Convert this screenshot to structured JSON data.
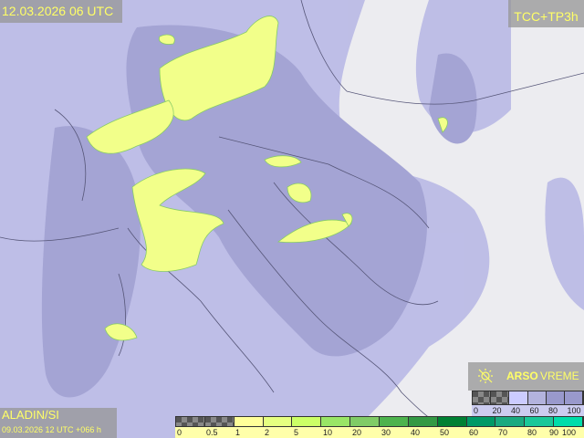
{
  "header": {
    "valid_time": "12.03.2026 06 UTC",
    "product": "TCC+TP3h"
  },
  "model": {
    "name": "ALADIN/SI",
    "run": "09.03.2026 12 UTC +066 h"
  },
  "branding": {
    "logo_icon": "sun-cloud-icon",
    "arso": "ARSO",
    "vreme": "VREME"
  },
  "precip_legend": {
    "labels": [
      "0",
      "0.5",
      "1",
      "2",
      "5",
      "10",
      "20",
      "30",
      "40",
      "50",
      "60",
      "70",
      "80",
      "90",
      "100"
    ],
    "colors": [
      "checker",
      "checker",
      "#ffff99",
      "#e6ff80",
      "#ccff66",
      "#99e666",
      "#80cc66",
      "#4db34d",
      "#339944",
      "#008033",
      "#009966",
      "#1aaa80",
      "#1ac899",
      "#00ddaa",
      "#00ffcc"
    ]
  },
  "cloud_legend": {
    "labels": [
      "0",
      "20",
      "40",
      "60",
      "80",
      "100"
    ],
    "colors": [
      "checker",
      "checker",
      "#ccccff",
      "#b3b3dd",
      "#9999cc",
      "#9999cc"
    ]
  },
  "colors": {
    "land": "#ececf0",
    "cloud_light": "#c4c4ea",
    "cloud_dense": "#a8a8d6",
    "precip_light": "#ffff99",
    "precip_mid": "#e6ff80",
    "label_text": "#ffff66"
  }
}
